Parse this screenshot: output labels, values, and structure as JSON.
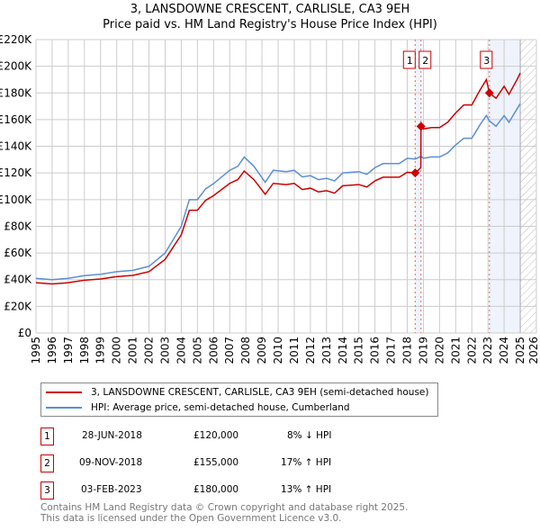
{
  "title": "3, LANSDOWNE CRESCENT, CARLISLE, CA3 9EH",
  "subtitle": "Price paid vs. HM Land Registry's House Price Index (HPI)",
  "chart_data": {
    "type": "line",
    "title": "3, LANSDOWNE CRESCENT, CARLISLE, CA3 9EH",
    "subtitle": "Price paid vs. HM Land Registry's House Price Index (HPI)",
    "xlim": [
      1995,
      2026
    ],
    "ylim": [
      0,
      220000
    ],
    "x_ticks": [
      "1995",
      "1996",
      "1997",
      "1998",
      "1999",
      "2000",
      "2001",
      "2002",
      "2003",
      "2004",
      "2005",
      "2006",
      "2007",
      "2008",
      "2009",
      "2010",
      "2011",
      "2012",
      "2013",
      "2014",
      "2015",
      "2016",
      "2017",
      "2018",
      "2019",
      "2020",
      "2021",
      "2022",
      "2023",
      "2024",
      "2025",
      "2026"
    ],
    "y_ticks": [
      "£0",
      "£20K",
      "£40K",
      "£60K",
      "£80K",
      "£100K",
      "£120K",
      "£140K",
      "£160K",
      "£180K",
      "£200K",
      "£220K"
    ],
    "grid": true,
    "series": [
      {
        "name": "3, LANSDOWNE CRESCENT, CARLISLE, CA3 9EH (semi-detached house)",
        "color": "#cc0000",
        "x": [
          1995,
          1996,
          1997,
          1998,
          1999,
          2000,
          2001,
          2002,
          2003,
          2004,
          2004.5,
          2005,
          2005.5,
          2006,
          2007,
          2007.5,
          2007.9,
          2008.5,
          2009.2,
          2009.7,
          2010.5,
          2011,
          2011.5,
          2012,
          2012.5,
          2013,
          2013.5,
          2014,
          2015,
          2015.5,
          2016,
          2016.5,
          2017,
          2017.5,
          2018,
          2018.49,
          2018.84,
          2018.85,
          2019,
          2019.5,
          2020,
          2020.5,
          2021,
          2021.5,
          2022,
          2022.5,
          2022.9,
          2023.09,
          2023.5,
          2024,
          2024.3,
          2024.8,
          2025
        ],
        "y": [
          37700,
          36800,
          37700,
          39600,
          40500,
          42300,
          43200,
          46000,
          55200,
          73600,
          92000,
          92000,
          99400,
          103000,
          112200,
          115000,
          121400,
          115000,
          104000,
          112200,
          111300,
          112200,
          107600,
          108600,
          105800,
          106700,
          104900,
          110400,
          111300,
          109500,
          114100,
          116800,
          116800,
          116800,
          120500,
          120000,
          124000,
          155000,
          153000,
          154000,
          154000,
          158000,
          165000,
          171000,
          171000,
          182000,
          190000,
          180000,
          176000,
          185000,
          179000,
          190000,
          195000
        ]
      },
      {
        "name": "HPI: Average price, semi-detached house, Cumberland",
        "color": "#5b8fd4",
        "x": [
          1995,
          1996,
          1997,
          1998,
          1999,
          2000,
          2001,
          2002,
          2003,
          2004,
          2004.5,
          2005,
          2005.5,
          2006,
          2007,
          2007.5,
          2007.9,
          2008.5,
          2009.2,
          2009.7,
          2010.5,
          2011,
          2011.5,
          2012,
          2012.5,
          2013,
          2013.5,
          2014,
          2015,
          2015.5,
          2016,
          2016.5,
          2017,
          2017.5,
          2018,
          2018.49,
          2018.85,
          2019,
          2019.5,
          2020,
          2020.5,
          2021,
          2021.5,
          2022,
          2022.5,
          2022.9,
          2023.09,
          2023.5,
          2024,
          2024.3,
          2024.8,
          2025
        ],
        "y": [
          41000,
          40000,
          41000,
          43000,
          44000,
          46000,
          47000,
          50000,
          60000,
          80000,
          100000,
          100000,
          108000,
          112000,
          122000,
          125000,
          132000,
          125000,
          113000,
          122000,
          121000,
          122000,
          117000,
          118000,
          115000,
          116000,
          114000,
          120000,
          121000,
          119000,
          124000,
          127000,
          127000,
          127000,
          131000,
          130400,
          132500,
          131000,
          132000,
          132000,
          135000,
          141000,
          146000,
          146000,
          156000,
          163000,
          159000,
          155000,
          163000,
          158000,
          168000,
          172000
        ]
      }
    ],
    "sales": [
      {
        "label": "1",
        "x": 2018.49,
        "y": 120000
      },
      {
        "label": "2",
        "x": 2018.85,
        "y": 155000
      },
      {
        "label": "3",
        "x": 2023.09,
        "y": 180000
      }
    ],
    "forecast_start": 2025
  },
  "legend": [
    {
      "label": "3, LANSDOWNE CRESCENT, CARLISLE, CA3 9EH (semi-detached house)",
      "color": "#cc0000"
    },
    {
      "label": "HPI: Average price, semi-detached house, Cumberland",
      "color": "#5b8fd4"
    }
  ],
  "transactions": [
    {
      "num": "1",
      "date": "28-JUN-2018",
      "price": "£120,000",
      "hpi": "8% ↓ HPI"
    },
    {
      "num": "2",
      "date": "09-NOV-2018",
      "price": "£155,000",
      "hpi": "17% ↑ HPI"
    },
    {
      "num": "3",
      "date": "03-FEB-2023",
      "price": "£180,000",
      "hpi": "13% ↑ HPI"
    }
  ],
  "footer": {
    "line1": "Contains HM Land Registry data © Crown copyright and database right 2025.",
    "line2": "This data is licensed under the Open Government Licence v3.0."
  }
}
